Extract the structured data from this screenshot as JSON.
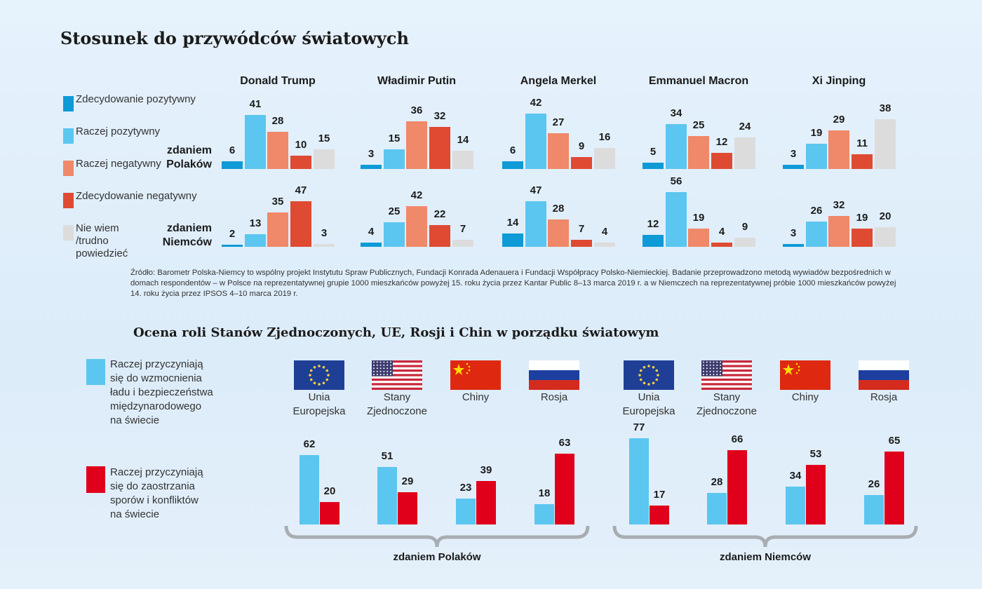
{
  "chart_data": [
    {
      "type": "bar",
      "title": "Stosunek do przywódców światowych",
      "categories": [
        "Donald Trump",
        "Władimir Putin",
        "Angela Merkel",
        "Emmanuel Macron",
        "Xi Jinping"
      ],
      "legend": [
        {
          "label": "Zdecydowanie pozytywny",
          "color": "#0e9ad6"
        },
        {
          "label": "Raczej pozytywny",
          "color": "#5bc6ef"
        },
        {
          "label": "Raczej negatywny",
          "color": "#f0886a"
        },
        {
          "label": "Zdecydowanie negatywny",
          "color": "#df4a33"
        },
        {
          "label": "Nie wiem\n/trudno\npowiedzieć",
          "color": "#dcdcdc"
        }
      ],
      "legend_placement": "left",
      "rows": [
        {
          "label": "zdaniem\nPolaków",
          "values": [
            [
              6,
              41,
              28,
              10,
              15
            ],
            [
              3,
              15,
              36,
              32,
              14
            ],
            [
              6,
              42,
              27,
              9,
              16
            ],
            [
              5,
              34,
              25,
              12,
              24
            ],
            [
              3,
              19,
              29,
              11,
              38
            ]
          ]
        },
        {
          "label": "zdaniem\nNiemców",
          "values": [
            [
              2,
              13,
              35,
              47,
              3
            ],
            [
              4,
              25,
              42,
              22,
              7
            ],
            [
              14,
              47,
              28,
              7,
              4
            ],
            [
              12,
              56,
              19,
              4,
              9
            ],
            [
              3,
              26,
              32,
              19,
              20
            ]
          ]
        }
      ]
    },
    {
      "type": "bar",
      "title": "Ocena roli Stanów Zjednoczonych, UE, Rosji i Chin w porządku światowym",
      "categories": [
        "Unia\nEuropejska",
        "Stany\nZjednoczone",
        "Chiny",
        "Rosja"
      ],
      "flags": [
        "eu-flag",
        "us-flag",
        "china-flag",
        "russia-flag"
      ],
      "legend": [
        {
          "label": "Raczej przyczyniają\nsię do wzmocnienia\nładu i bezpieczeństwa\nmiędzynarodowego\nna świecie",
          "color": "#5bc6ef"
        },
        {
          "label": "Raczej przyczyniają\nsię do zaostrzania\nsporów i konfliktów\nna świecie",
          "color": "#e0001b"
        }
      ],
      "legend_placement": "left",
      "groups": [
        {
          "label": "zdaniem Polaków",
          "positive": [
            62,
            51,
            23,
            18
          ],
          "negative": [
            20,
            29,
            39,
            63
          ]
        },
        {
          "label": "zdaniem Niemców",
          "positive": [
            77,
            28,
            34,
            26
          ],
          "negative": [
            17,
            66,
            53,
            65
          ]
        }
      ]
    }
  ],
  "source": "Źródło: Barometr Polska-Niemcy to wspólny projekt Instytutu Spraw Publicznych, Fundacji Konrada Adenauera i Fundacji Współpracy Polsko-Niemieckiej. Badanie przeprowadzono metodą wywiadów bezpośrednich w domach respondentów – w Polsce na reprezentatywnej grupie 1000 mieszkańców powyżej 15. roku życia przez Kantar Public 8–13 marca 2019 r. a w Niemczech na reprezentatywnej próbie 1000 mieszkańców powyżej 14. roku życia przez IPSOS 4–10 marca 2019 r."
}
